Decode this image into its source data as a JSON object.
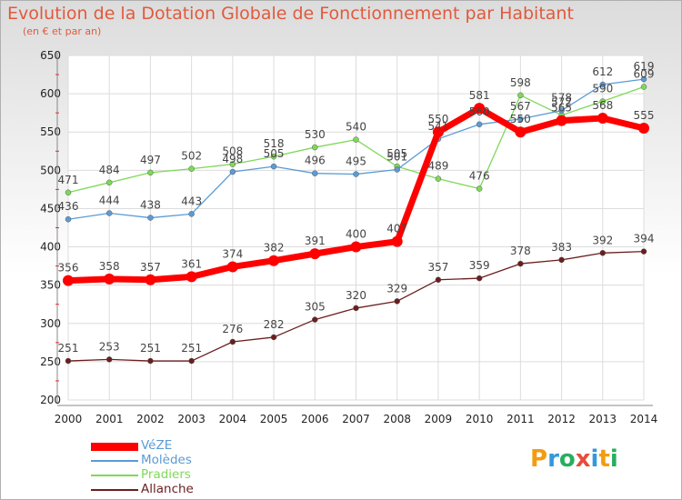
{
  "title": "Evolution de la Dotation Globale de Fonctionnement par Habitant",
  "subtitle": "(en € et par an)",
  "logo": {
    "letters": [
      "P",
      "r",
      "o",
      "x",
      "i",
      "t",
      "i"
    ],
    "colors": [
      "#f39c12",
      "#3498db",
      "#27ae60",
      "#e74c3c",
      "#3498db",
      "#f39c12",
      "#27ae60"
    ]
  },
  "chart_data": {
    "type": "line",
    "x": [
      2000,
      2001,
      2002,
      2003,
      2004,
      2005,
      2006,
      2007,
      2008,
      2009,
      2010,
      2011,
      2012,
      2013,
      2014
    ],
    "ylim": [
      200,
      650
    ],
    "yticks": [
      200,
      250,
      300,
      350,
      400,
      450,
      500,
      550,
      600,
      650
    ],
    "grid": true,
    "legend": "bottom-left",
    "series": [
      {
        "name": "VéZE",
        "color": "#ff0000",
        "values": [
          356,
          358,
          357,
          361,
          374,
          382,
          391,
          400,
          407,
          550,
          581,
          550,
          565,
          568,
          555
        ]
      },
      {
        "name": "Molèdes",
        "color": "#5b9bd5",
        "values": [
          436,
          444,
          438,
          443,
          498,
          505,
          496,
          495,
          501,
          541,
          560,
          567,
          578,
          612,
          619
        ]
      },
      {
        "name": "Pradiers",
        "color": "#7ed957",
        "values": [
          471,
          484,
          497,
          502,
          508,
          518,
          530,
          540,
          505,
          489,
          476,
          598,
          572,
          590,
          609
        ]
      },
      {
        "name": "Allanche",
        "color": "#6b1e1e",
        "values": [
          251,
          253,
          251,
          251,
          276,
          282,
          305,
          320,
          329,
          357,
          359,
          378,
          383,
          392,
          394
        ]
      }
    ]
  }
}
